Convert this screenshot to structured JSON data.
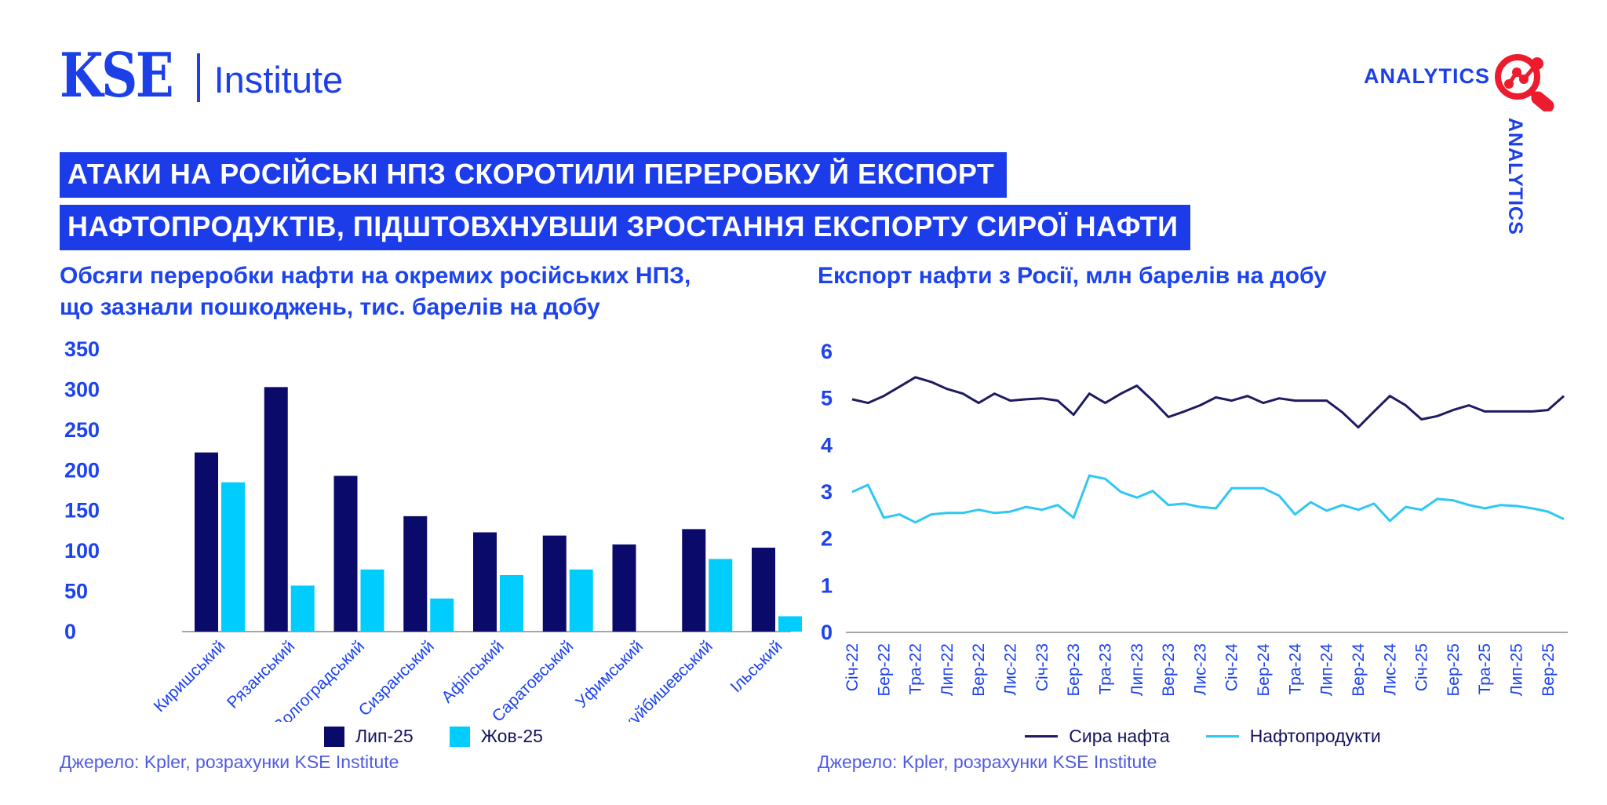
{
  "header": {
    "logo_kse": "KSE",
    "logo_institute": "Institute",
    "analytics_top": "ANALYTICS",
    "analytics_side": "ANALYTICS"
  },
  "headline": {
    "line1": "АТАКИ НА РОСІЙСЬКІ НПЗ СКОРОТИЛИ ПЕРЕРОБКУ Й ЕКСПОРТ",
    "line2": "НАФТОПРОДУКТІВ, ПІДШТОВХНУВШИ ЗРОСТАННЯ ЕКСПОРТУ СИРОЇ НАФТИ"
  },
  "left_chart": {
    "title_line1": "Обсяги переробки нафти на окремих російських НПЗ,",
    "title_line2": "що зазнали пошкоджень, тис. барелів на добу",
    "source": "Джерело: Kpler, розрахунки KSE Institute"
  },
  "right_chart": {
    "title": "Експорт нафти з Росії, млн барелів на добу",
    "source": "Джерело: Kpler, розрахунки KSE Institute"
  },
  "colors": {
    "brand_blue": "#1c3fe8",
    "band_blue": "#1c3ce9",
    "navy": "#0a0a6b",
    "cyan_bar": "#00cdfb",
    "navy_line": "#1e1b61",
    "cyan_line": "#2fc7f3",
    "red_icon": "#ec1b2e",
    "axis_gray": "#a6a6a6"
  },
  "chart_data": [
    {
      "type": "bar",
      "title": "Обсяги переробки нафти на окремих російських НПЗ, що зазнали пошкоджень, тис. барелів на добу",
      "categories": [
        "Киришський",
        "Рязанський",
        "Волгоградський",
        "Сизранський",
        "Афіпський",
        "Саратовський",
        "Уфимський",
        "Новокуйбишевський",
        "Ільський"
      ],
      "series": [
        {
          "name": "Лип-25",
          "color": "#0a0a6b",
          "values": [
            222,
            303,
            193,
            143,
            123,
            119,
            108,
            127,
            104
          ]
        },
        {
          "name": "Жов-25",
          "color": "#00cdfb",
          "values": [
            185,
            57,
            77,
            41,
            70,
            77,
            0,
            90,
            19
          ]
        }
      ],
      "ylabel": "тис. барелів на добу",
      "ylim": [
        0,
        350
      ],
      "ytick_step": 50,
      "grid": false,
      "legend_position": "bottom"
    },
    {
      "type": "line",
      "title": "Експорт нафти з Росії, млн барелів на добу",
      "x_tick_labels": [
        "Січ-22",
        "Бер-22",
        "Тра-22",
        "Лип-22",
        "Вер-22",
        "Лис-22",
        "Січ-23",
        "Бер-23",
        "Тра-23",
        "Лип-23",
        "Вер-23",
        "Лис-23",
        "Січ-24",
        "Бер-24",
        "Тра-24",
        "Лип-24",
        "Вер-24",
        "Лис-24",
        "Січ-25",
        "Бер-25",
        "Тра-25",
        "Лип-25",
        "Вер-25"
      ],
      "x_tick_every": 2,
      "series": [
        {
          "name": "Сира нафта",
          "color": "#1e1b61",
          "values": [
            4.98,
            4.9,
            5.05,
            5.25,
            5.45,
            5.35,
            5.2,
            5.1,
            4.9,
            5.1,
            4.95,
            4.98,
            5.0,
            4.95,
            4.65,
            5.1,
            4.9,
            5.1,
            5.27,
            4.95,
            4.6,
            4.72,
            4.85,
            5.02,
            4.95,
            5.05,
            4.9,
            5.0,
            4.95,
            4.95,
            4.95,
            4.7,
            4.38,
            4.72,
            5.05,
            4.85,
            4.55,
            4.62,
            4.75,
            4.85,
            4.72,
            4.72,
            4.72,
            4.72,
            4.75,
            5.05
          ]
        },
        {
          "name": "Нафтопродукти",
          "color": "#2fc7f3",
          "values": [
            3.0,
            3.15,
            2.45,
            2.52,
            2.35,
            2.52,
            2.55,
            2.55,
            2.62,
            2.55,
            2.58,
            2.68,
            2.62,
            2.72,
            2.45,
            3.35,
            3.28,
            3.0,
            2.88,
            3.02,
            2.72,
            2.75,
            2.68,
            2.65,
            3.08,
            3.08,
            3.08,
            2.92,
            2.52,
            2.78,
            2.6,
            2.72,
            2.62,
            2.75,
            2.38,
            2.68,
            2.62,
            2.85,
            2.82,
            2.72,
            2.65,
            2.72,
            2.7,
            2.65,
            2.58,
            2.42
          ]
        }
      ],
      "ylabel": "млн барелів на добу",
      "ylim": [
        0,
        6
      ],
      "ytick_step": 1,
      "grid": false,
      "legend_position": "bottom"
    }
  ]
}
